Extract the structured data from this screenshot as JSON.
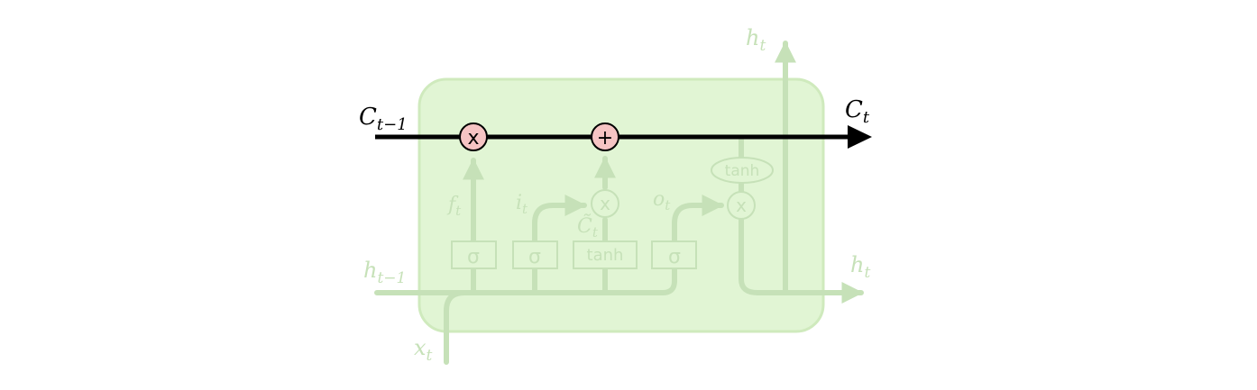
{
  "diagram": {
    "type": "lstm-cell-state-highlight",
    "colors": {
      "cell_fill": "#e1f5d4",
      "cell_stroke": "#cfeabd",
      "faded": "#c6e1b8",
      "highlight_line": "#000000",
      "operator_fill": "#f6c4c4",
      "operator_stroke": "#000000"
    },
    "labels": {
      "c_prev": {
        "base": "C",
        "sub": "t−1"
      },
      "c_next": {
        "base": "C",
        "sub": "t"
      },
      "h_prev": {
        "base": "h",
        "sub": "t−1"
      },
      "h_next_right": {
        "base": "h",
        "sub": "t"
      },
      "h_next_top": {
        "base": "h",
        "sub": "t"
      },
      "x_input": {
        "base": "x",
        "sub": "t"
      },
      "forget_gate": {
        "base": "f",
        "sub": "t"
      },
      "input_gate": {
        "base": "i",
        "sub": "t"
      },
      "candidate": {
        "base": "C̃",
        "sub": "t"
      },
      "output_gate": {
        "base": "o",
        "sub": "t"
      }
    },
    "blocks": {
      "sigma_1": "σ",
      "sigma_2": "σ",
      "tanh_layer": "tanh",
      "sigma_3": "σ",
      "tanh_pointwise": "tanh"
    },
    "operators": {
      "forget_multiply": "x",
      "input_add": "+",
      "input_multiply": "x",
      "output_multiply": "x"
    }
  }
}
